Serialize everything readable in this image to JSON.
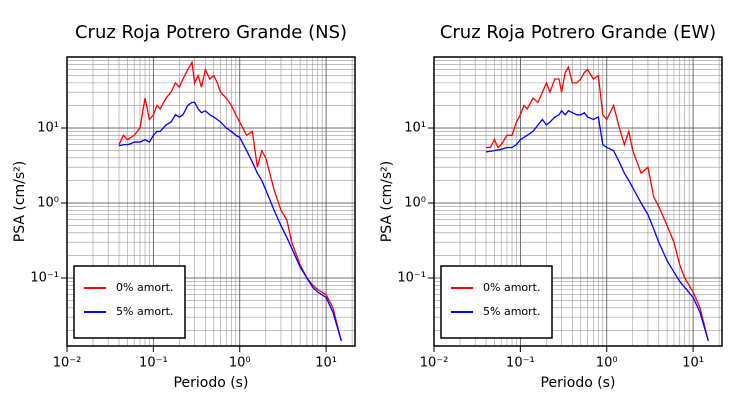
{
  "chart_data": [
    {
      "type": "line",
      "title": "Cruz Roja Potrero Grande (NS)",
      "x_label": "Periodo (s)",
      "y_label": "PSA (cm/s²)",
      "x": [
        0.04,
        0.045,
        0.05,
        0.055,
        0.06,
        0.07,
        0.08,
        0.09,
        0.1,
        0.11,
        0.12,
        0.14,
        0.16,
        0.18,
        0.2,
        0.22,
        0.25,
        0.28,
        0.3,
        0.33,
        0.36,
        0.4,
        0.45,
        0.5,
        0.55,
        0.6,
        0.7,
        0.8,
        0.9,
        1.0,
        1.2,
        1.4,
        1.6,
        1.8,
        2,
        2.5,
        3,
        3.5,
        4,
        5,
        6,
        7,
        8,
        10,
        12,
        15
      ],
      "series": [
        {
          "name": "0% amort.",
          "color": "#ff0000",
          "values": [
            6,
            8,
            7,
            7.5,
            8,
            10,
            25,
            13,
            15,
            20,
            18,
            25,
            30,
            40,
            35,
            45,
            60,
            75,
            40,
            50,
            35,
            60,
            45,
            50,
            40,
            30,
            25,
            20,
            15,
            12,
            8,
            9,
            3,
            5,
            4,
            1.5,
            0.8,
            0.6,
            0.3,
            0.15,
            0.1,
            0.08,
            0.07,
            0.06,
            0.04,
            0.0145
          ]
        },
        {
          "name": "5% amort.",
          "color": "#0000ff",
          "values": [
            5.8,
            6,
            6,
            6.2,
            6.5,
            6.5,
            7,
            6.5,
            8,
            9,
            9,
            11,
            12,
            15,
            14,
            15,
            20,
            22,
            22,
            18,
            16,
            17,
            15,
            14,
            13,
            12,
            10,
            9,
            8,
            7.5,
            5,
            3.5,
            2.5,
            2,
            1.5,
            0.8,
            0.5,
            0.35,
            0.25,
            0.14,
            0.1,
            0.075,
            0.065,
            0.055,
            0.035,
            0.0145
          ]
        }
      ],
      "log_x": true,
      "log_y": true,
      "grid": true,
      "legend": "lower left",
      "xlim": [
        0.01,
        21.6
      ],
      "xticks": [
        {
          "value": 0.01,
          "label": "10⁻²"
        },
        {
          "value": 0.1,
          "label": "10⁻¹"
        },
        {
          "value": 1,
          "label": "10⁰"
        },
        {
          "value": 10,
          "label": "10¹"
        }
      ],
      "ylim": [
        0.0124,
        88.5
      ],
      "yticks": [
        {
          "value": 0.1,
          "label": "10⁻¹"
        },
        {
          "value": 1,
          "label": "10⁰"
        },
        {
          "value": 10,
          "label": "10¹"
        }
      ]
    },
    {
      "type": "line",
      "title": "Cruz Roja Potrero Grande (EW)",
      "x_label": "Periodo (s)",
      "y_label": "PSA (cm/s²)",
      "x": [
        0.04,
        0.045,
        0.05,
        0.055,
        0.06,
        0.07,
        0.08,
        0.09,
        0.1,
        0.11,
        0.12,
        0.14,
        0.16,
        0.18,
        0.2,
        0.22,
        0.25,
        0.28,
        0.3,
        0.33,
        0.36,
        0.4,
        0.45,
        0.5,
        0.55,
        0.6,
        0.7,
        0.8,
        0.9,
        1.0,
        1.2,
        1.4,
        1.6,
        1.8,
        2,
        2.5,
        3,
        3.5,
        4,
        5,
        6,
        7,
        8,
        10,
        12,
        15
      ],
      "series": [
        {
          "name": "0% amort.",
          "color": "#ff0000",
          "values": [
            5.5,
            5.5,
            7,
            5.5,
            6,
            8,
            8,
            12,
            15,
            20,
            18,
            25,
            22,
            30,
            40,
            30,
            45,
            45,
            30,
            55,
            65,
            40,
            40,
            45,
            55,
            60,
            45,
            50,
            15,
            13,
            20,
            10,
            6,
            9,
            5,
            2.5,
            3,
            1.2,
            0.9,
            0.5,
            0.3,
            0.15,
            0.1,
            0.065,
            0.04,
            0.0145
          ]
        },
        {
          "name": "5% amort.",
          "color": "#0000ff",
          "values": [
            4.8,
            4.9,
            5,
            5.1,
            5.2,
            5.5,
            5.5,
            6,
            7,
            7.5,
            8,
            9,
            11,
            13,
            11,
            12,
            14,
            15,
            17,
            15,
            17,
            16,
            15,
            15,
            16,
            14,
            13,
            14,
            6,
            5.5,
            5,
            3.5,
            2.5,
            2,
            1.6,
            1,
            0.7,
            0.45,
            0.3,
            0.17,
            0.12,
            0.09,
            0.075,
            0.055,
            0.035,
            0.0145
          ]
        }
      ],
      "log_x": true,
      "log_y": true,
      "grid": true,
      "legend": "lower left",
      "xlim": [
        0.01,
        21.6
      ],
      "xticks": [
        {
          "value": 0.01,
          "label": "10⁻²"
        },
        {
          "value": 0.1,
          "label": "10⁻¹"
        },
        {
          "value": 1,
          "label": "10⁰"
        },
        {
          "value": 10,
          "label": "10¹"
        }
      ],
      "ylim": [
        0.0124,
        88.5
      ],
      "yticks": [
        {
          "value": 0.1,
          "label": "10⁻¹"
        },
        {
          "value": 1,
          "label": "10⁰"
        },
        {
          "value": 10,
          "label": "10¹"
        }
      ]
    }
  ]
}
